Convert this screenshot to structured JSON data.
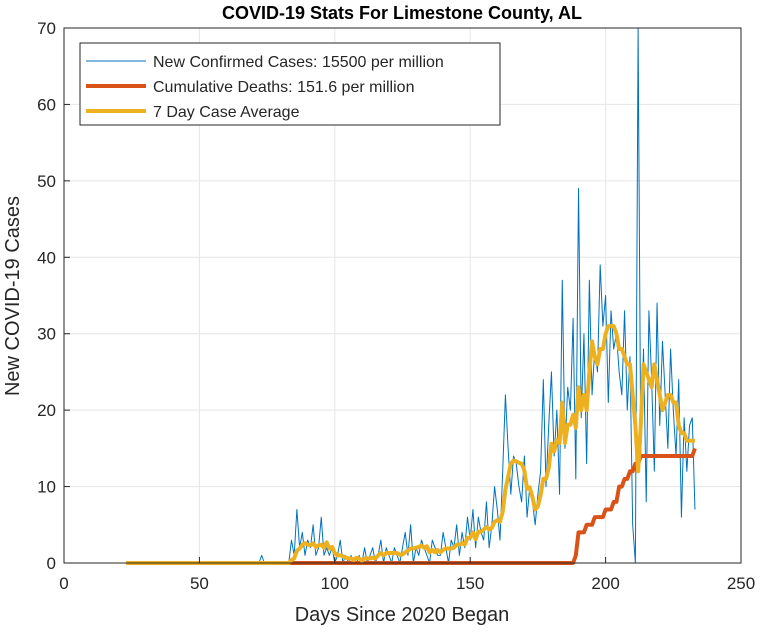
{
  "chart_data": {
    "type": "line",
    "title": "COVID-19 Stats For Limestone County, AL",
    "x_label": "Days Since 2020 Began",
    "y_label": "New COVID-19 Cases",
    "xlim": [
      0,
      250
    ],
    "xticks": [
      0,
      50,
      100,
      150,
      200,
      250
    ],
    "ylim": [
      0,
      70
    ],
    "yticks": [
      0,
      10,
      20,
      30,
      40,
      50,
      60,
      70
    ],
    "grid": true,
    "legend": "upper left",
    "x": [
      23,
      24,
      25,
      26,
      27,
      28,
      29,
      30,
      31,
      32,
      33,
      34,
      35,
      36,
      37,
      38,
      39,
      40,
      41,
      42,
      43,
      44,
      45,
      46,
      47,
      48,
      49,
      50,
      51,
      52,
      53,
      54,
      55,
      56,
      57,
      58,
      59,
      60,
      61,
      62,
      63,
      64,
      65,
      66,
      67,
      68,
      69,
      70,
      71,
      72,
      73,
      74,
      75,
      76,
      77,
      78,
      79,
      80,
      81,
      82,
      83,
      84,
      85,
      86,
      87,
      88,
      89,
      90,
      91,
      92,
      93,
      94,
      95,
      96,
      97,
      98,
      99,
      100,
      101,
      102,
      103,
      104,
      105,
      106,
      107,
      108,
      109,
      110,
      111,
      112,
      113,
      114,
      115,
      116,
      117,
      118,
      119,
      120,
      121,
      122,
      123,
      124,
      125,
      126,
      127,
      128,
      129,
      130,
      131,
      132,
      133,
      134,
      135,
      136,
      137,
      138,
      139,
      140,
      141,
      142,
      143,
      144,
      145,
      146,
      147,
      148,
      149,
      150,
      151,
      152,
      153,
      154,
      155,
      156,
      157,
      158,
      159,
      160,
      161,
      162,
      163,
      164,
      165,
      166,
      167,
      168,
      169,
      170,
      171,
      172,
      173,
      174,
      175,
      176,
      177,
      178,
      179,
      180,
      181,
      182,
      183,
      184,
      185,
      186,
      187,
      188,
      189,
      190,
      191,
      192,
      193,
      194,
      195,
      196,
      197,
      198,
      199,
      200,
      201,
      202,
      203,
      204,
      205,
      206,
      207,
      208,
      209,
      210,
      211,
      212,
      213,
      214,
      215,
      216,
      217,
      218,
      219,
      220,
      221,
      222,
      223,
      224,
      225,
      226,
      227,
      228,
      229,
      230,
      231,
      232,
      233
    ],
    "series": [
      {
        "name": "New Confirmed Cases: 15500 per million",
        "color": "#0072BD",
        "width": 1,
        "values": [
          0,
          0,
          0,
          0,
          0,
          0,
          0,
          0,
          0,
          0,
          0,
          0,
          0,
          0,
          0,
          0,
          0,
          0,
          0,
          0,
          0,
          0,
          0,
          0,
          0,
          0,
          0,
          0,
          0,
          0,
          0,
          0,
          0,
          0,
          0,
          0,
          0,
          0,
          0,
          0,
          0,
          0,
          0,
          0,
          0,
          0,
          0,
          0,
          0,
          0,
          1,
          0,
          0,
          0,
          0,
          0,
          0,
          0,
          0,
          0,
          0,
          3,
          1,
          7,
          2,
          4,
          1,
          3,
          2,
          5,
          1,
          2,
          6,
          1,
          2,
          1,
          2,
          0,
          1,
          3,
          0,
          1,
          0,
          1,
          0,
          0,
          1,
          0,
          2,
          0,
          1,
          2,
          0,
          1,
          3,
          0,
          2,
          1,
          0,
          2,
          1,
          0,
          2,
          4,
          1,
          5,
          0,
          2,
          1,
          3,
          2,
          1,
          0,
          3,
          2,
          1,
          1,
          4,
          2,
          0,
          3,
          2,
          5,
          1,
          4,
          2,
          6,
          3,
          7,
          2,
          6,
          4,
          3,
          8,
          2,
          5,
          10,
          7,
          3,
          12,
          22,
          15,
          9,
          14,
          13,
          10,
          8,
          14,
          6,
          10,
          8,
          5,
          9,
          12,
          24,
          10,
          18,
          25,
          14,
          20,
          9,
          37,
          15,
          23,
          20,
          32,
          11,
          49,
          19,
          30,
          13,
          37,
          22,
          28,
          25,
          39,
          31,
          35,
          21,
          33,
          28,
          30,
          25,
          22,
          33,
          20,
          27,
          5,
          0,
          70,
          14,
          28,
          8,
          33,
          24,
          12,
          34,
          18,
          29,
          22,
          15,
          28,
          20,
          14,
          24,
          6,
          19,
          12,
          18,
          19,
          7
        ]
      },
      {
        "name": "Cumulative Deaths: 151.6 per million",
        "color": "#D95319",
        "width": 4,
        "values": [
          0,
          0,
          0,
          0,
          0,
          0,
          0,
          0,
          0,
          0,
          0,
          0,
          0,
          0,
          0,
          0,
          0,
          0,
          0,
          0,
          0,
          0,
          0,
          0,
          0,
          0,
          0,
          0,
          0,
          0,
          0,
          0,
          0,
          0,
          0,
          0,
          0,
          0,
          0,
          0,
          0,
          0,
          0,
          0,
          0,
          0,
          0,
          0,
          0,
          0,
          0,
          0,
          0,
          0,
          0,
          0,
          0,
          0,
          0,
          0,
          0,
          0,
          0,
          0,
          0,
          0,
          0,
          0,
          0,
          0,
          0,
          0,
          0,
          0,
          0,
          0,
          0,
          0,
          0,
          0,
          0,
          0,
          0,
          0,
          0,
          0,
          0,
          0,
          0,
          0,
          0,
          0,
          0,
          0,
          0,
          0,
          0,
          0,
          0,
          0,
          0,
          0,
          0,
          0,
          0,
          0,
          0,
          0,
          0,
          0,
          0,
          0,
          0,
          0,
          0,
          0,
          0,
          0,
          0,
          0,
          0,
          0,
          0,
          0,
          0,
          0,
          0,
          0,
          0,
          0,
          0,
          0,
          0,
          0,
          0,
          0,
          0,
          0,
          0,
          0,
          0,
          0,
          0,
          0,
          0,
          0,
          0,
          0,
          0,
          0,
          0,
          0,
          0,
          0,
          0,
          0,
          0,
          0,
          0,
          0,
          0,
          0,
          0,
          0,
          0,
          0,
          1,
          4,
          4,
          4,
          5,
          5,
          5,
          6,
          6,
          6,
          6,
          7,
          7,
          7,
          8,
          8,
          10,
          10,
          11,
          11,
          12,
          12,
          13,
          13,
          14,
          14,
          14,
          14,
          14,
          14,
          14,
          14,
          14,
          14,
          14,
          14,
          14,
          14,
          14,
          14,
          14,
          14,
          14,
          14,
          15
        ]
      },
      {
        "name": "7 Day Case Average",
        "color": "#EDB120",
        "width": 4,
        "values": [
          0,
          0,
          0,
          0,
          0,
          0,
          0,
          0,
          0,
          0,
          0,
          0,
          0,
          0,
          0,
          0,
          0,
          0,
          0,
          0,
          0,
          0,
          0,
          0,
          0,
          0,
          0,
          0,
          0,
          0,
          0,
          0,
          0,
          0,
          0,
          0,
          0,
          0,
          0,
          0,
          0,
          0,
          0,
          0,
          0,
          0,
          0,
          0,
          0,
          0,
          0,
          0,
          0,
          0,
          0,
          0,
          0,
          0,
          0,
          0,
          0,
          0.4,
          0.6,
          1.6,
          1.9,
          2.4,
          2.6,
          2.4,
          2.3,
          2.6,
          2.1,
          2.3,
          2.4,
          2,
          2.7,
          1.9,
          2.1,
          1.3,
          1,
          1,
          0.9,
          0.7,
          0.6,
          0.6,
          0.4,
          0.7,
          0.6,
          0.3,
          0.6,
          0.6,
          0.6,
          0.7,
          0.6,
          1,
          1.3,
          1,
          1.3,
          1.3,
          1.3,
          1.3,
          1.3,
          1.1,
          1.1,
          1.4,
          1.6,
          1.9,
          1.9,
          2,
          2.1,
          2.3,
          2,
          2.2,
          1.4,
          1.7,
          1.4,
          1.7,
          1.4,
          1.7,
          1.9,
          1.9,
          1.9,
          2,
          2.4,
          2.4,
          2.6,
          2.4,
          3.3,
          3.3,
          4,
          3.1,
          4.1,
          4.1,
          4.4,
          4.7,
          4.4,
          4.6,
          5.4,
          5.6,
          5.4,
          6.7,
          9.6,
          11.3,
          13,
          13.4,
          13.3,
          13.1,
          13,
          12.1,
          9.7,
          9.9,
          8.6,
          7,
          7.4,
          8.9,
          11,
          11,
          12.4,
          15.6,
          14.6,
          16.1,
          15.7,
          21,
          15.7,
          18.1,
          18.1,
          19.4,
          17.7,
          23,
          20,
          22,
          20,
          25,
          29,
          27,
          26,
          28,
          28,
          30,
          31,
          31,
          31,
          30,
          28,
          28,
          27,
          26,
          26,
          22,
          18,
          12,
          18,
          26,
          25,
          24,
          23,
          26,
          24,
          22,
          20,
          21,
          22,
          22,
          21,
          21,
          18,
          17,
          17,
          16,
          16,
          16,
          16
        ]
      }
    ]
  }
}
